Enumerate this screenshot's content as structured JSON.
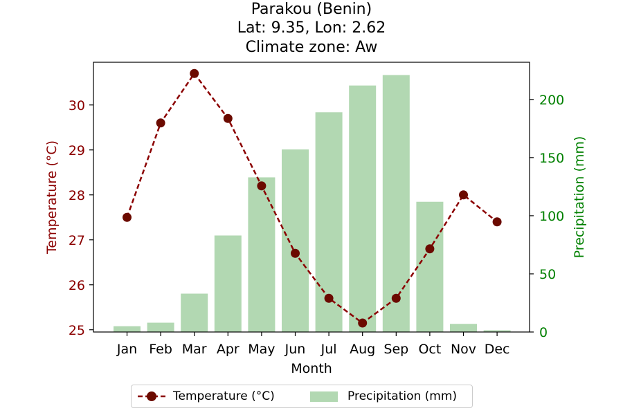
{
  "title": {
    "line1": "Parakou (Benin)",
    "line2": "Lat: 9.35, Lon: 2.62",
    "line3": "Climate zone: Aw"
  },
  "chart_data": {
    "type": "bar+line",
    "categories": [
      "Jan",
      "Feb",
      "Mar",
      "Apr",
      "May",
      "Jun",
      "Jul",
      "Aug",
      "Sep",
      "Oct",
      "Nov",
      "Dec"
    ],
    "xlabel": "Month",
    "series": [
      {
        "name": "Temperature (°C)",
        "type": "line",
        "axis": "left",
        "color": "#8b0000",
        "marker_color": "#6b0a00",
        "linestyle": "dashed",
        "values": [
          27.5,
          29.6,
          30.7,
          29.7,
          28.2,
          26.7,
          25.7,
          25.15,
          25.7,
          26.8,
          28.0,
          27.4
        ]
      },
      {
        "name": "Precipitation (mm)",
        "type": "bar",
        "axis": "right",
        "color": "#b2d8b2",
        "values": [
          5,
          8,
          33,
          83,
          133,
          157,
          189,
          212,
          221,
          112,
          7,
          1.5
        ]
      }
    ],
    "y_left": {
      "label": "Temperature (°C)",
      "color": "#8b0000",
      "ticks": [
        25,
        26,
        27,
        28,
        29,
        30
      ],
      "range": [
        24.95,
        30.95
      ]
    },
    "y_right": {
      "label": "Precipitation (mm)",
      "color": "#008000",
      "ticks": [
        0,
        50,
        100,
        150,
        200
      ],
      "range": [
        0,
        232
      ]
    },
    "grid": false,
    "legend_position": "bottom-center"
  }
}
